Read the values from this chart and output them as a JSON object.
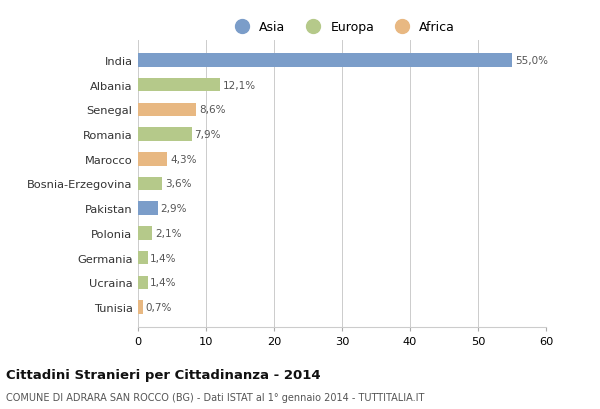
{
  "countries": [
    "India",
    "Albania",
    "Senegal",
    "Romania",
    "Marocco",
    "Bosnia-Erzegovina",
    "Pakistan",
    "Polonia",
    "Germania",
    "Ucraina",
    "Tunisia"
  ],
  "values": [
    55.0,
    12.1,
    8.6,
    7.9,
    4.3,
    3.6,
    2.9,
    2.1,
    1.4,
    1.4,
    0.7
  ],
  "labels": [
    "55,0%",
    "12,1%",
    "8,6%",
    "7,9%",
    "4,3%",
    "3,6%",
    "2,9%",
    "2,1%",
    "1,4%",
    "1,4%",
    "0,7%"
  ],
  "continents": [
    "Asia",
    "Europa",
    "Africa",
    "Europa",
    "Africa",
    "Europa",
    "Asia",
    "Europa",
    "Europa",
    "Europa",
    "Africa"
  ],
  "colors": {
    "Asia": "#7b9dc9",
    "Europa": "#b5c98a",
    "Africa": "#e8b882"
  },
  "xlim": [
    0,
    60
  ],
  "xticks": [
    0,
    10,
    20,
    30,
    40,
    50,
    60
  ],
  "title": "Cittadini Stranieri per Cittadinanza - 2014",
  "subtitle": "COMUNE DI ADRARA SAN ROCCO (BG) - Dati ISTAT al 1° gennaio 2014 - TUTTITALIA.IT",
  "bg_color": "#ffffff",
  "grid_color": "#cccccc",
  "bar_height": 0.55
}
